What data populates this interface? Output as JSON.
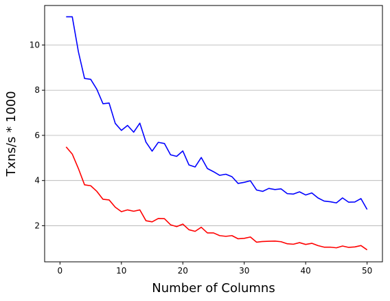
{
  "chart_data": {
    "type": "line",
    "title": "",
    "xlabel": "Number of Columns",
    "ylabel": "Txns/s * 1000",
    "xlim": [
      -2.5,
      52.5
    ],
    "ylim": [
      0.4,
      11.75
    ],
    "xticks": [
      0,
      10,
      20,
      30,
      40,
      50
    ],
    "yticks": [
      2,
      4,
      6,
      8,
      10
    ],
    "grid": "horizontal",
    "legend": "none",
    "x": [
      1,
      2,
      3,
      4,
      5,
      6,
      7,
      8,
      9,
      10,
      11,
      12,
      13,
      14,
      15,
      16,
      17,
      18,
      19,
      20,
      21,
      22,
      23,
      24,
      25,
      26,
      27,
      28,
      29,
      30,
      31,
      32,
      33,
      34,
      35,
      36,
      37,
      38,
      39,
      40,
      41,
      42,
      43,
      44,
      45,
      46,
      47,
      48,
      49,
      50
    ],
    "series": [
      {
        "color": "#0000ff",
        "values": [
          11.25,
          11.25,
          9.7,
          8.52,
          8.48,
          8.04,
          7.4,
          7.43,
          6.53,
          6.22,
          6.44,
          6.14,
          6.54,
          5.7,
          5.3,
          5.69,
          5.64,
          5.14,
          5.07,
          5.31,
          4.69,
          4.6,
          5.02,
          4.53,
          4.39,
          4.23,
          4.28,
          4.17,
          3.87,
          3.92,
          3.99,
          3.58,
          3.52,
          3.65,
          3.6,
          3.63,
          3.42,
          3.4,
          3.5,
          3.36,
          3.45,
          3.23,
          3.09,
          3.06,
          3.01,
          3.23,
          3.04,
          3.05,
          3.2,
          2.72
        ]
      },
      {
        "color": "#ff0000",
        "values": [
          5.49,
          5.17,
          4.53,
          3.81,
          3.77,
          3.52,
          3.17,
          3.14,
          2.82,
          2.62,
          2.7,
          2.64,
          2.7,
          2.22,
          2.17,
          2.32,
          2.31,
          2.04,
          1.96,
          2.07,
          1.82,
          1.75,
          1.93,
          1.68,
          1.68,
          1.56,
          1.53,
          1.56,
          1.42,
          1.44,
          1.5,
          1.27,
          1.3,
          1.31,
          1.32,
          1.29,
          1.2,
          1.18,
          1.25,
          1.17,
          1.22,
          1.12,
          1.05,
          1.05,
          1.02,
          1.1,
          1.04,
          1.06,
          1.12,
          0.93
        ]
      }
    ]
  }
}
